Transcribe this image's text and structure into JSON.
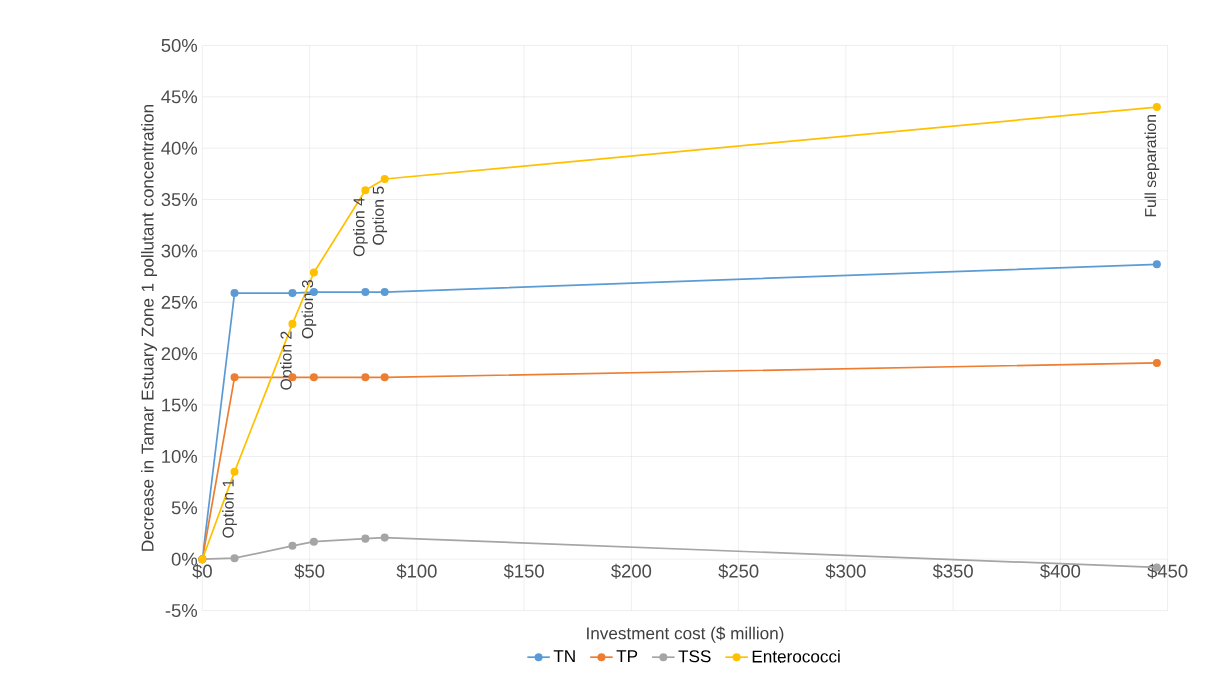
{
  "chart_data": {
    "type": "line",
    "xlabel": "Investment  cost ($ million)",
    "ylabel": "Decrease in Tamar Estuary Zone 1 pollutant concentration",
    "x": [
      0,
      15,
      42,
      52,
      76,
      85,
      445
    ],
    "series": [
      {
        "name": "TN",
        "color": "#5b9bd5",
        "values": [
          0,
          25.9,
          25.9,
          26.0,
          26.0,
          26.0,
          28.7
        ]
      },
      {
        "name": "TP",
        "color": "#ed7d31",
        "values": [
          0,
          17.7,
          17.7,
          17.7,
          17.7,
          17.7,
          19.1
        ]
      },
      {
        "name": "TSS",
        "color": "#a5a5a5",
        "values": [
          0,
          0.1,
          1.3,
          1.7,
          2.0,
          2.1,
          -0.8
        ]
      },
      {
        "name": "Enterococci",
        "color": "#ffc000",
        "values": [
          0,
          8.5,
          22.9,
          27.9,
          35.9,
          37.0,
          44.0
        ]
      }
    ],
    "annotations": [
      {
        "text": "Option 1",
        "x": 15,
        "y": 8.5
      },
      {
        "text": "Option 2",
        "x": 42,
        "y": 22.9
      },
      {
        "text": "Option 3",
        "x": 52,
        "y": 27.9
      },
      {
        "text": "Option 4",
        "x": 76,
        "y": 35.9
      },
      {
        "text": "Option 5",
        "x": 85,
        "y": 37.0
      },
      {
        "text": "Full separation",
        "x": 445,
        "y": 44.0
      }
    ],
    "xlim": [
      0,
      450
    ],
    "ylim": [
      -5,
      50
    ],
    "xticks": [
      {
        "value": 0,
        "label": "$0"
      },
      {
        "value": 50,
        "label": "$50"
      },
      {
        "value": 100,
        "label": "$100"
      },
      {
        "value": 150,
        "label": "$150"
      },
      {
        "value": 200,
        "label": "$200"
      },
      {
        "value": 250,
        "label": "$250"
      },
      {
        "value": 300,
        "label": "$300"
      },
      {
        "value": 350,
        "label": "$350"
      },
      {
        "value": 400,
        "label": "$400"
      },
      {
        "value": 450,
        "label": "$450"
      }
    ],
    "yticks": [
      {
        "value": -5,
        "label": "-5%"
      },
      {
        "value": 0,
        "label": "0%"
      },
      {
        "value": 5,
        "label": "5%"
      },
      {
        "value": 10,
        "label": "10%"
      },
      {
        "value": 15,
        "label": "15%"
      },
      {
        "value": 20,
        "label": "20%"
      },
      {
        "value": 25,
        "label": "25%"
      },
      {
        "value": 30,
        "label": "30%"
      },
      {
        "value": 35,
        "label": "35%"
      },
      {
        "value": 40,
        "label": "40%"
      },
      {
        "value": 45,
        "label": "45%"
      },
      {
        "value": 50,
        "label": "50%"
      }
    ],
    "grid": true,
    "legend": "bottom",
    "marker": "circle",
    "line_style": "solid"
  }
}
